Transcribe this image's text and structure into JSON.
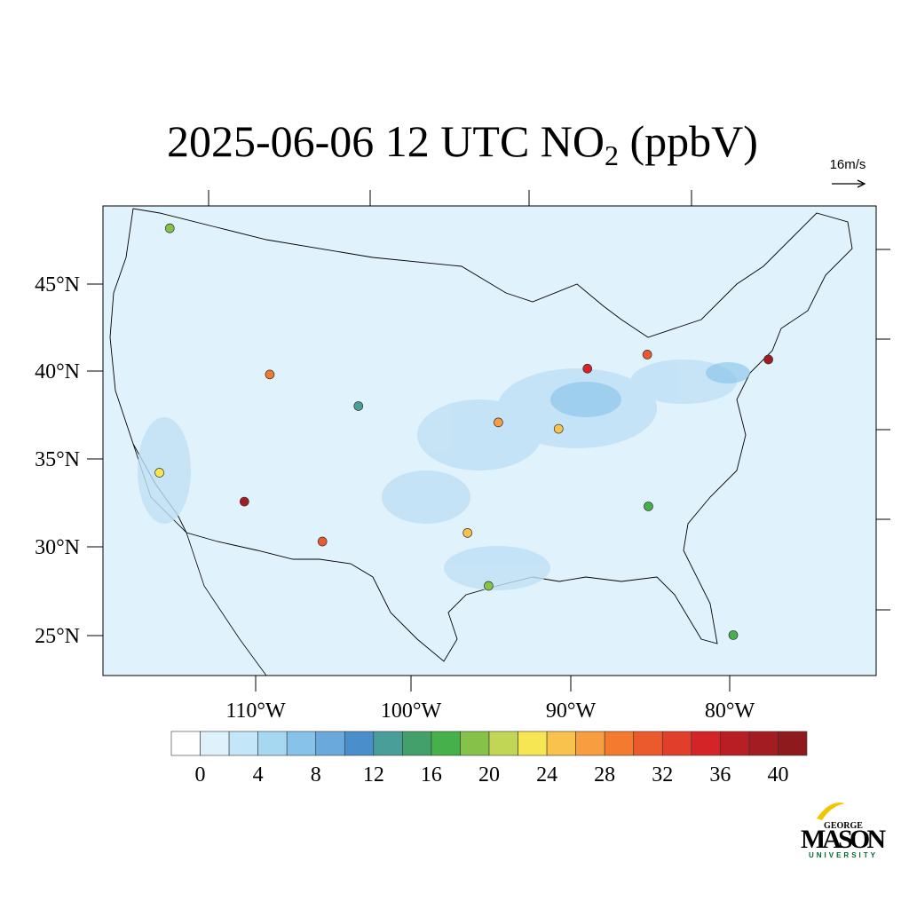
{
  "title": {
    "text": "2025-06-06 12 UTC NO",
    "subscript": "2",
    "suffix": " (ppbV)"
  },
  "wind_reference": "16m/s",
  "lat_labels": [
    "45°N",
    "40°N",
    "35°N",
    "30°N",
    "25°N"
  ],
  "lon_labels": [
    "110°W",
    "100°W",
    "90°W",
    "80°W"
  ],
  "colorbar": {
    "colors": [
      "#ffffff",
      "#dff1fb",
      "#c3e6f8",
      "#a6d8f2",
      "#86c2ea",
      "#6aa9dc",
      "#4a8fcc",
      "#4a9e9a",
      "#44a06a",
      "#46b04a",
      "#86c24a",
      "#c2d656",
      "#f6e654",
      "#f8c24c",
      "#f89e40",
      "#f47a30",
      "#ea5a2c",
      "#e23e2c",
      "#d42428",
      "#b81e24",
      "#a31c22",
      "#8e1a1e"
    ],
    "ticks": [
      0,
      4,
      8,
      12,
      16,
      20,
      24,
      28,
      32,
      36,
      40
    ]
  },
  "stations": [
    {
      "lon": -118.2,
      "lat": 34.0,
      "value": 22
    },
    {
      "lon": -112.1,
      "lat": 33.4,
      "value": 38
    },
    {
      "lon": -105.0,
      "lat": 39.7,
      "value": 12
    },
    {
      "lon": -111.9,
      "lat": 40.8,
      "value": 28
    },
    {
      "lon": -87.7,
      "lat": 41.9,
      "value": 34
    },
    {
      "lon": -74.0,
      "lat": 40.7,
      "value": 38
    },
    {
      "lon": -95.4,
      "lat": 29.8,
      "value": 18
    },
    {
      "lon": -84.4,
      "lat": 33.7,
      "value": 16
    },
    {
      "lon": -122.3,
      "lat": 47.6,
      "value": 18
    },
    {
      "lon": -106.5,
      "lat": 31.8,
      "value": 30
    },
    {
      "lon": -96.8,
      "lat": 32.8,
      "value": 24
    },
    {
      "lon": -80.2,
      "lat": 25.8,
      "value": 16
    },
    {
      "lon": -83.0,
      "lat": 42.3,
      "value": 30
    },
    {
      "lon": -94.6,
      "lat": 39.1,
      "value": 26
    },
    {
      "lon": -90.2,
      "lat": 38.6,
      "value": 24
    }
  ],
  "logo": {
    "top": "GEORGE",
    "main": "MASON",
    "bottom": "UNIVERSITY"
  }
}
